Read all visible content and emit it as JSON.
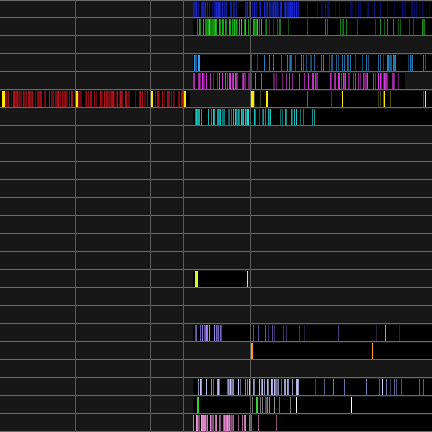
{
  "timeline": {
    "gridlines": [
      75,
      150,
      183,
      250
    ],
    "tracks": [
      {
        "segments": [
          {
            "x": 193,
            "w": 239,
            "runs": [
              [
                193,
                300,
                "#1a2be0",
                0.55
              ],
              [
                300,
                432,
                "#0a0f80",
                0.25
              ]
            ]
          }
        ]
      },
      {
        "segments": [
          {
            "x": 193,
            "w": 239,
            "runs": [
              [
                193,
                262,
                "#22e01f",
                0.55
              ],
              [
                262,
                432,
                "#1f9a22",
                0.12
              ]
            ]
          }
        ]
      },
      {
        "segments": []
      },
      {
        "segments": [
          {
            "x": 193,
            "w": 239,
            "runs": [
              [
                193,
                200,
                "#3aa7ff",
                0.8
              ],
              [
                250,
                432,
                "#2d86c8",
                0.25
              ]
            ]
          }
        ]
      },
      {
        "segments": [
          {
            "x": 193,
            "w": 212,
            "runs": [
              [
                193,
                262,
                "#e33be6",
                0.5
              ],
              [
                262,
                300,
                "#c43bc8",
                0.2
              ],
              [
                300,
                405,
                "#e33be6",
                0.35
              ]
            ]
          }
        ]
      },
      {
        "segments": [
          {
            "x": 0,
            "w": 190,
            "runs": [
              [
                4,
                186,
                "#b8141c",
                0.55
              ]
            ],
            "marks": [
              [
                2,
                "#ffea00",
                3
              ],
              [
                75,
                "#ffea00",
                3
              ],
              [
                150,
                "#ffea00",
                3
              ],
              [
                183,
                "#ffea00",
                3
              ]
            ]
          },
          {
            "x": 250,
            "w": 182,
            "runs": [
              [
                250,
                432,
                "#6a6a10",
                0.05
              ]
            ],
            "marks": [
              [
                251,
                "#ffea00",
                3
              ],
              [
                266,
                "#ffea00",
                2
              ],
              [
                342,
                "#ffea00",
                1
              ],
              [
                384,
                "#ffea00",
                1
              ],
              [
                425,
                "#ffea00",
                1
              ]
            ]
          }
        ]
      },
      {
        "segments": [
          {
            "x": 193,
            "w": 239,
            "runs": [
              [
                193,
                250,
                "#1fd9d9",
                0.5
              ],
              [
                250,
                320,
                "#1fc4c4",
                0.35
              ]
            ]
          }
        ]
      },
      {
        "segments": []
      },
      {
        "segments": []
      },
      {
        "segments": []
      },
      {
        "segments": []
      },
      {
        "segments": []
      },
      {
        "segments": []
      },
      {
        "segments": []
      },
      {
        "segments": []
      },
      {
        "segments": [
          {
            "x": 193,
            "w": 55,
            "runs": [],
            "marks": [
              [
                195,
                "#c8ff2a",
                3
              ],
              [
                247,
                "#c8ff2a",
                1
              ]
            ]
          }
        ]
      },
      {
        "segments": []
      },
      {
        "segments": []
      },
      {
        "segments": [
          {
            "x": 193,
            "w": 239,
            "runs": [
              [
                193,
                222,
                "#a58cff",
                0.5
              ],
              [
                250,
                300,
                "#6a55b0",
                0.15
              ],
              [
                300,
                432,
                "#4a3a80",
                0.05
              ]
            ],
            "marks": [
              [
                385,
                "#a58cff",
                1
              ]
            ]
          }
        ]
      },
      {
        "segments": [
          {
            "x": 250,
            "w": 182,
            "runs": [],
            "marks": [
              [
                250,
                "#ff9a33",
                3
              ],
              [
                372,
                "#ff9a33",
                1
              ]
            ]
          }
        ]
      },
      {
        "segments": []
      },
      {
        "segments": [
          {
            "x": 193,
            "w": 239,
            "runs": [
              [
                193,
                300,
                "#c8c8ff",
                0.45
              ],
              [
                300,
                432,
                "#7f7fbf",
                0.08
              ]
            ],
            "marks": [
              [
                382,
                "#c8c8ff",
                1
              ]
            ]
          }
        ]
      },
      {
        "segments": [
          {
            "x": 193,
            "w": 239,
            "runs": [
              [
                250,
                300,
                "#9a9a9a",
                0.2
              ]
            ],
            "marks": [
              [
                197,
                "#39d02e",
                2
              ],
              [
                256,
                "#39d02e",
                2
              ],
              [
                296,
                "#ffffff",
                1
              ],
              [
                351,
                "#ffffff",
                1
              ]
            ]
          }
        ]
      },
      {
        "segments": [
          {
            "x": 193,
            "w": 239,
            "runs": [
              [
                193,
                252,
                "#ff9ae6",
                0.6
              ],
              [
                252,
                300,
                "#a06a90",
                0.15
              ]
            ]
          }
        ]
      }
    ]
  }
}
